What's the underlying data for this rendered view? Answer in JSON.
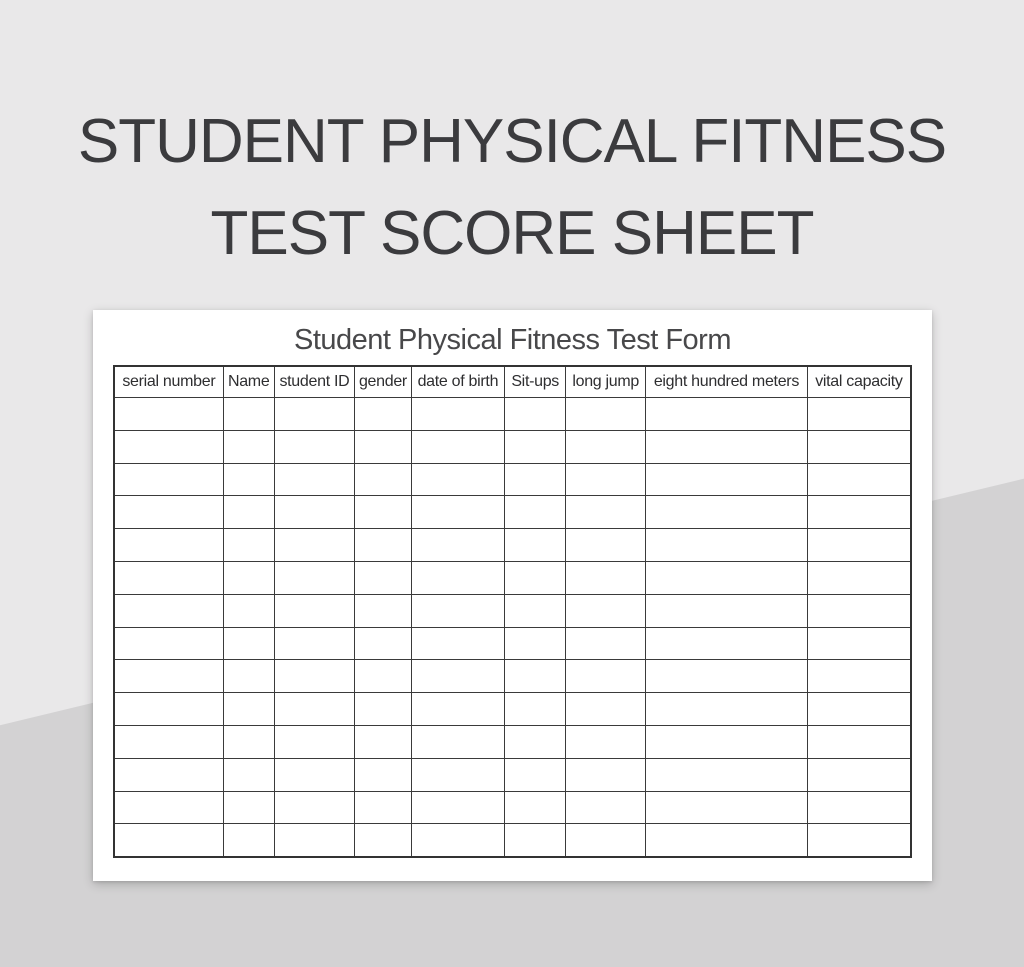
{
  "page": {
    "title": "STUDENT PHYSICAL FITNESS TEST SCORE SHEET"
  },
  "card": {
    "form_title": "Student Physical Fitness Test Form",
    "table": {
      "columns": [
        "serial number",
        "Name",
        "student ID",
        "gender",
        "date of birth",
        "Sit-ups",
        "long jump",
        "eight hundred meters",
        "vital capacity"
      ],
      "empty_row_count": 14,
      "cell_value": ""
    }
  },
  "colors": {
    "background_top": "#e9e8e9",
    "background_bottom": "#d3d2d3",
    "card_background": "#ffffff",
    "title_text": "#3b3b3e",
    "form_title_text": "#48484a",
    "header_text": "#2e2e30",
    "table_border": "#3a3a3a"
  }
}
